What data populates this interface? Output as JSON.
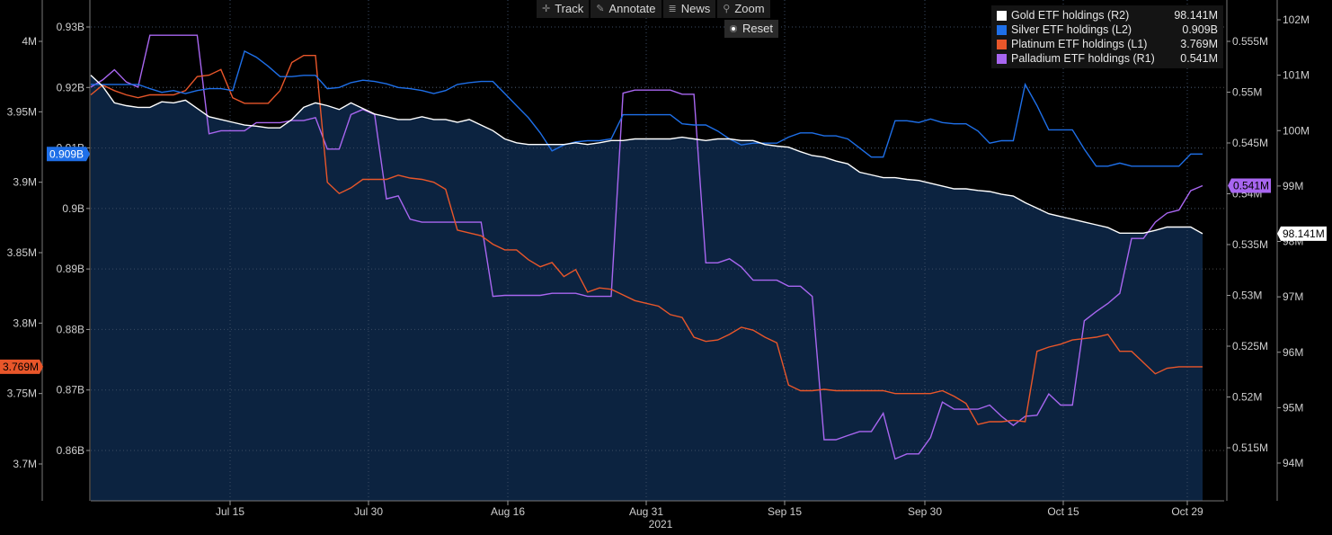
{
  "toolbar": {
    "track": "Track",
    "annotate": "Annotate",
    "news": "News",
    "zoom": "Zoom",
    "reset": "Reset"
  },
  "chart_data": {
    "type": "line",
    "xlabel": "2021",
    "x_ticks": [
      "Jul 15",
      "Jul 30",
      "Aug 16",
      "Aug 31",
      "Sep 15",
      "Sep 30",
      "Oct 15",
      "Oct 29"
    ],
    "grid": true,
    "legend_position": "top-right",
    "axes": {
      "L1": {
        "side": "left",
        "ticks": [
          "4M",
          "3.95M",
          "3.9M",
          "3.85M",
          "3.8M",
          "3.75M",
          "3.7M"
        ],
        "ylim": [
          3.7,
          4.0
        ]
      },
      "L2": {
        "side": "left",
        "ticks": [
          "0.93B",
          "0.92B",
          "0.91B",
          "0.9B",
          "0.89B",
          "0.88B",
          "0.87B",
          "0.86B"
        ],
        "ylim": [
          0.86,
          0.93
        ]
      },
      "R1": {
        "side": "right",
        "ticks": [
          "0.555M",
          "0.55M",
          "0.545M",
          "0.54M",
          "0.535M",
          "0.53M",
          "0.525M",
          "0.52M",
          "0.515M"
        ],
        "ylim": [
          0.515,
          0.555
        ]
      },
      "R2": {
        "side": "right",
        "ticks": [
          "102M",
          "101M",
          "100M",
          "99M",
          "98M",
          "97M",
          "96M",
          "95M",
          "94M"
        ],
        "ylim": [
          94,
          102
        ]
      }
    },
    "series": [
      {
        "name": "Gold ETF holdings (R2)",
        "axis": "R2",
        "color": "#ffffff",
        "fill": "#0c2340",
        "last": "98.141M",
        "values": [
          101.0,
          100.8,
          100.5,
          100.45,
          100.42,
          100.42,
          100.52,
          100.5,
          100.55,
          100.4,
          100.25,
          100.2,
          100.15,
          100.1,
          100.08,
          100.05,
          100.05,
          100.2,
          100.42,
          100.5,
          100.45,
          100.38,
          100.5,
          100.4,
          100.3,
          100.25,
          100.2,
          100.2,
          100.25,
          100.2,
          100.2,
          100.15,
          100.2,
          100.1,
          100.0,
          99.85,
          99.78,
          99.75,
          99.75,
          99.75,
          99.75,
          99.78,
          99.75,
          99.78,
          99.82,
          99.82,
          99.85,
          99.85,
          99.85,
          99.85,
          99.88,
          99.85,
          99.82,
          99.85,
          99.85,
          99.82,
          99.82,
          99.75,
          99.72,
          99.7,
          99.62,
          99.55,
          99.52,
          99.45,
          99.4,
          99.25,
          99.2,
          99.15,
          99.15,
          99.12,
          99.1,
          99.05,
          99.0,
          98.95,
          98.95,
          98.92,
          98.9,
          98.85,
          98.82,
          98.7,
          98.6,
          98.5,
          98.45,
          98.4,
          98.35,
          98.3,
          98.25,
          98.15,
          98.15,
          98.15,
          98.2,
          98.26,
          98.26,
          98.26,
          98.14
        ]
      },
      {
        "name": "Silver ETF holdings (L2)",
        "axis": "L2",
        "color": "#1e6fe8",
        "last": "0.909B",
        "values": [
          0.9205,
          0.9205,
          0.9205,
          0.9205,
          0.9205,
          0.9198,
          0.9192,
          0.9195,
          0.919,
          0.9195,
          0.9198,
          0.9198,
          0.9195,
          0.926,
          0.925,
          0.9235,
          0.9218,
          0.9218,
          0.922,
          0.922,
          0.9198,
          0.92,
          0.9208,
          0.9212,
          0.921,
          0.9206,
          0.92,
          0.9198,
          0.9195,
          0.919,
          0.9195,
          0.9205,
          0.9208,
          0.921,
          0.921,
          0.919,
          0.917,
          0.915,
          0.9125,
          0.9095,
          0.9105,
          0.911,
          0.9112,
          0.9112,
          0.9115,
          0.9155,
          0.9155,
          0.9155,
          0.9155,
          0.9155,
          0.914,
          0.9138,
          0.9138,
          0.9128,
          0.9115,
          0.9105,
          0.9108,
          0.9108,
          0.9108,
          0.9118,
          0.9125,
          0.9125,
          0.912,
          0.912,
          0.9115,
          0.91,
          0.9085,
          0.9085,
          0.9145,
          0.9145,
          0.9142,
          0.9148,
          0.9142,
          0.914,
          0.914,
          0.9128,
          0.9108,
          0.9112,
          0.9112,
          0.9205,
          0.917,
          0.913,
          0.913,
          0.913,
          0.9098,
          0.907,
          0.907,
          0.9075,
          0.907,
          0.907,
          0.907,
          0.907,
          0.907,
          0.909,
          0.909
        ]
      },
      {
        "name": "Platinum ETF holdings (L1)",
        "axis": "L1",
        "color": "#e8562a",
        "last": "3.769M",
        "values": [
          3.962,
          3.969,
          3.965,
          3.962,
          3.96,
          3.962,
          3.962,
          3.962,
          3.965,
          3.975,
          3.976,
          3.98,
          3.96,
          3.956,
          3.956,
          3.956,
          3.965,
          3.985,
          3.99,
          3.99,
          3.9,
          3.892,
          3.896,
          3.902,
          3.902,
          3.902,
          3.905,
          3.903,
          3.902,
          3.9,
          3.895,
          3.866,
          3.864,
          3.862,
          3.856,
          3.852,
          3.852,
          3.845,
          3.84,
          3.843,
          3.833,
          3.838,
          3.822,
          3.825,
          3.824,
          3.82,
          3.816,
          3.814,
          3.812,
          3.806,
          3.804,
          3.79,
          3.787,
          3.788,
          3.792,
          3.797,
          3.795,
          3.79,
          3.786,
          3.756,
          3.752,
          3.752,
          3.753,
          3.752,
          3.752,
          3.752,
          3.752,
          3.752,
          3.75,
          3.75,
          3.75,
          3.75,
          3.752,
          3.748,
          3.743,
          3.728,
          3.73,
          3.73,
          3.731,
          3.73,
          3.78,
          3.783,
          3.785,
          3.788,
          3.789,
          3.79,
          3.792,
          3.78,
          3.78,
          3.772,
          3.764,
          3.768,
          3.769,
          3.769,
          3.769
        ]
      },
      {
        "name": "Palladium ETF holdings (R1)",
        "axis": "R1",
        "color": "#a866f0",
        "last": "0.541M",
        "values": [
          0.5505,
          0.5512,
          0.5522,
          0.551,
          0.5505,
          0.5556,
          0.5556,
          0.5556,
          0.5556,
          0.5556,
          0.5459,
          0.5462,
          0.5462,
          0.5462,
          0.547,
          0.547,
          0.547,
          0.5472,
          0.5472,
          0.5475,
          0.5444,
          0.5444,
          0.5478,
          0.5483,
          0.5478,
          0.5395,
          0.5398,
          0.5375,
          0.5372,
          0.5372,
          0.5372,
          0.5372,
          0.5372,
          0.5372,
          0.5299,
          0.53,
          0.53,
          0.53,
          0.53,
          0.5302,
          0.5302,
          0.5302,
          0.5299,
          0.5299,
          0.5299,
          0.5499,
          0.5502,
          0.5502,
          0.5502,
          0.5502,
          0.5498,
          0.5498,
          0.5332,
          0.5332,
          0.5336,
          0.5328,
          0.5315,
          0.5315,
          0.5315,
          0.5309,
          0.5309,
          0.5299,
          0.5158,
          0.5158,
          0.5162,
          0.5166,
          0.5166,
          0.5184,
          0.5139,
          0.5144,
          0.5144,
          0.516,
          0.5195,
          0.5188,
          0.5188,
          0.5188,
          0.5192,
          0.5181,
          0.5172,
          0.5181,
          0.5182,
          0.5203,
          0.5192,
          0.5192,
          0.5275,
          0.5284,
          0.5292,
          0.5302,
          0.5356,
          0.5356,
          0.5372,
          0.5381,
          0.5384,
          0.5403,
          0.5408
        ]
      }
    ]
  }
}
